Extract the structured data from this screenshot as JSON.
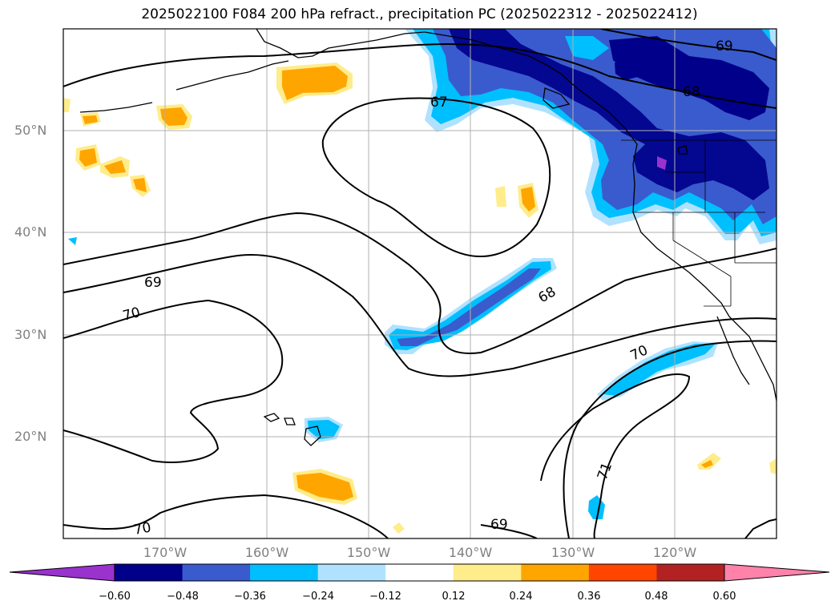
{
  "title": "2025022100 F084 200 hPa refract., precipitation PC (2025022312 - 2025022412)",
  "map": {
    "lat_labels": [
      "50°N",
      "40°N",
      "30°N",
      "20°N"
    ],
    "lon_labels": [
      "170°W",
      "160°W",
      "150°W",
      "140°W",
      "130°W",
      "120°W"
    ],
    "contour_labels": [
      "67",
      "68",
      "69",
      "69",
      "69",
      "70",
      "70",
      "70",
      "71",
      "68"
    ],
    "colors": {
      "gridline": "#b0b0b0",
      "contour": "#000000",
      "neg_060": "#9a32cd",
      "neg_048": "#00008b",
      "neg_036": "#3a5bcd",
      "neg_024": "#00bfff",
      "neg_012": "#b0e2ff",
      "pos_012": "#ffec8b",
      "pos_024": "#ffa500",
      "pos_036": "#ff4500",
      "pos_048": "#b22222",
      "pos_060": "#ff82ab"
    }
  },
  "colorbar": {
    "ticks": [
      "−0.60",
      "−0.48",
      "−0.36",
      "−0.24",
      "−0.12",
      "0.12",
      "0.24",
      "0.36",
      "0.48",
      "0.60"
    ],
    "bins": [
      "#9a32cd",
      "#00008b",
      "#3a5bcd",
      "#00bfff",
      "#b0e2ff",
      "#ffffff",
      "#ffec8b",
      "#ffa500",
      "#ff4500",
      "#b22222",
      "#ff82ab"
    ]
  }
}
